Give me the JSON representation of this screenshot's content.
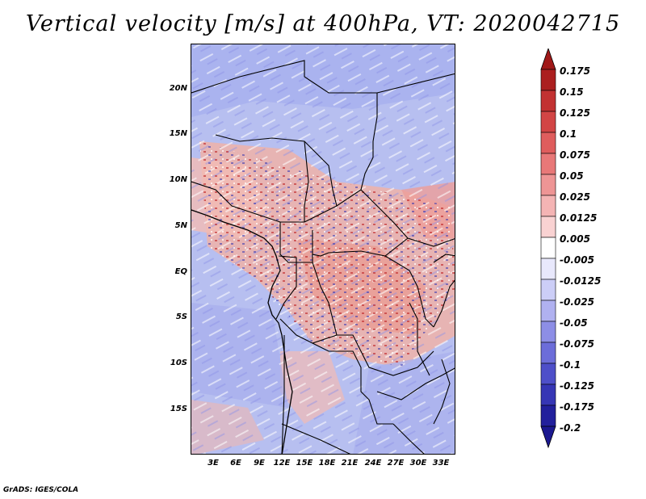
{
  "title": "Vertical velocity [m/s] at 400hPa, VT: 2020042715",
  "credit": "GrADS: IGES/COLA",
  "map": {
    "lat_labels": [
      "20N",
      "15N",
      "10N",
      "5N",
      "EQ",
      "5S",
      "10S",
      "15S"
    ],
    "lon_labels": [
      "3E",
      "6E",
      "9E",
      "12E",
      "15E",
      "18E",
      "21E",
      "24E",
      "27E",
      "30E",
      "33E"
    ],
    "field_colors": {
      "ocean_base": "#b7bff0",
      "land_warm": "#f0b0a8",
      "land_cool": "#c4c8f4"
    }
  },
  "colorbar": {
    "levels": [
      "0.175",
      "0.15",
      "0.125",
      "0.1",
      "0.075",
      "0.05",
      "0.025",
      "0.0125",
      "0.005",
      "-0.005",
      "-0.0125",
      "-0.025",
      "-0.05",
      "-0.075",
      "-0.1",
      "-0.125",
      "-0.175",
      "-0.2"
    ],
    "colors": [
      "#a01818",
      "#b82a2a",
      "#cc3a3a",
      "#db5050",
      "#e56a6a",
      "#ec8686",
      "#f2a4a4",
      "#f7c4c4",
      "#fbe0e0",
      "#ffffff",
      "#dcdcfa",
      "#c0c2f4",
      "#9e9fec",
      "#7c7ee0",
      "#5c5dd2",
      "#4041c0",
      "#2a29a8",
      "#1b1890"
    ]
  }
}
